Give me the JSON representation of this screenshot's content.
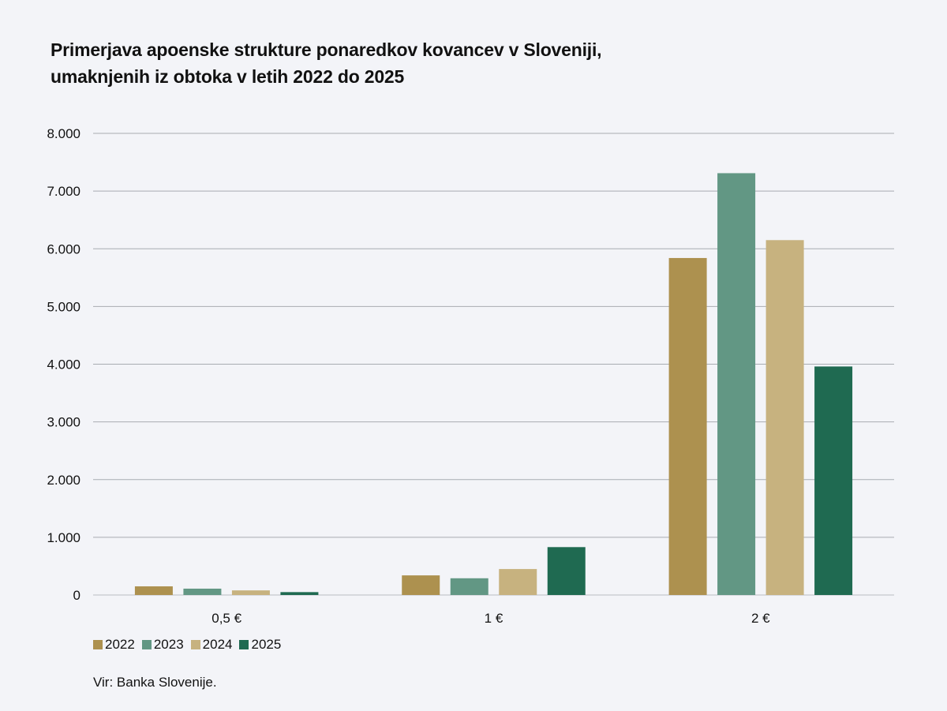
{
  "chart_data": {
    "type": "bar",
    "title_lines": [
      "Primerjava apoenske strukture ponaredkov kovancev v Sloveniji,",
      "umaknjenih iz obtoka v letih 2022 do 2025"
    ],
    "categories": [
      "0,5 €",
      "1 €",
      "2 €"
    ],
    "series": [
      {
        "name": "2022",
        "color": "#ad914f",
        "values": [
          150,
          340,
          5840
        ]
      },
      {
        "name": "2023",
        "color": "#629784",
        "values": [
          110,
          290,
          7310
        ]
      },
      {
        "name": "2024",
        "color": "#c7b27f",
        "values": [
          80,
          450,
          6150
        ]
      },
      {
        "name": "2025",
        "color": "#1f6a51",
        "values": [
          50,
          830,
          3960
        ]
      }
    ],
    "ylim": [
      0,
      8000
    ],
    "yticks": [
      0,
      1000,
      2000,
      3000,
      4000,
      5000,
      6000,
      7000,
      8000
    ],
    "ytick_labels": [
      "0",
      "1.000",
      "2.000",
      "3.000",
      "4.000",
      "5.000",
      "6.000",
      "7.000",
      "8.000"
    ],
    "grid": true,
    "legend_position": "bottom-left",
    "xlabel": "",
    "ylabel": ""
  },
  "source": "Vir: Banka Slovenije."
}
